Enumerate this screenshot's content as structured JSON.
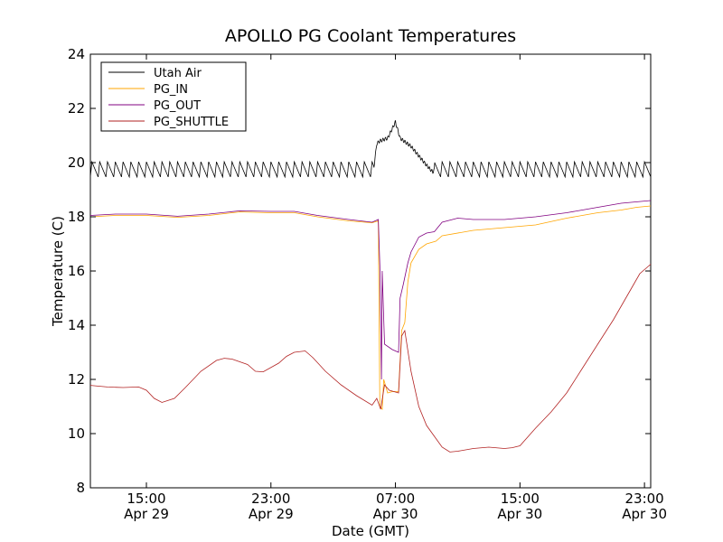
{
  "chart_data": {
    "type": "line",
    "title": "APOLLO PG Coolant Temperatures",
    "xlabel": "Date (GMT)",
    "ylabel": "Temperature (C)",
    "x_unit": "hours",
    "xlim": [
      11.4,
      47.4
    ],
    "ylim": [
      8,
      24
    ],
    "y_ticks": [
      8,
      10,
      12,
      14,
      16,
      18,
      20,
      22,
      24
    ],
    "x_ticks": [
      {
        "value": 15,
        "time": "15:00",
        "date": "Apr 29"
      },
      {
        "value": 23,
        "time": "23:00",
        "date": "Apr 29"
      },
      {
        "value": 31,
        "time": "07:00",
        "date": "Apr 30"
      },
      {
        "value": 39,
        "time": "15:00",
        "date": "Apr 30"
      },
      {
        "value": 47,
        "time": "23:00",
        "date": "Apr 30"
      }
    ],
    "grid": false,
    "legend_position": "top-left",
    "series": [
      {
        "name": "Utah Air",
        "color": "#000000",
        "width": 0.8,
        "oscillation": {
          "amplitude": 0.28,
          "period": 0.5
        },
        "points": [
          [
            11.4,
            19.75
          ],
          [
            29.6,
            19.75
          ],
          [
            29.8,
            20.7
          ],
          [
            30.0,
            20.8
          ],
          [
            30.5,
            20.9
          ],
          [
            31.0,
            21.5
          ],
          [
            31.3,
            20.9
          ],
          [
            32.0,
            20.6
          ],
          [
            33.0,
            19.9
          ],
          [
            33.4,
            19.65
          ],
          [
            33.5,
            19.75
          ],
          [
            47.4,
            19.75
          ]
        ]
      },
      {
        "name": "PG_IN",
        "color": "#FFA500",
        "width": 0.8,
        "points": [
          [
            11.4,
            18.0
          ],
          [
            13.0,
            18.05
          ],
          [
            15.0,
            18.05
          ],
          [
            17.0,
            17.98
          ],
          [
            19.0,
            18.05
          ],
          [
            21.0,
            18.18
          ],
          [
            23.0,
            18.15
          ],
          [
            24.5,
            18.15
          ],
          [
            26.0,
            18.0
          ],
          [
            28.0,
            17.85
          ],
          [
            29.5,
            17.78
          ],
          [
            29.9,
            17.85
          ],
          [
            30.0,
            11.0
          ],
          [
            30.15,
            10.9
          ],
          [
            30.25,
            12.0
          ],
          [
            30.5,
            11.5
          ],
          [
            30.8,
            11.55
          ],
          [
            31.2,
            11.55
          ],
          [
            31.4,
            13.8
          ],
          [
            31.6,
            14.1
          ],
          [
            31.8,
            15.6
          ],
          [
            32.0,
            16.3
          ],
          [
            32.5,
            16.8
          ],
          [
            33.0,
            17.0
          ],
          [
            33.6,
            17.1
          ],
          [
            34.0,
            17.3
          ],
          [
            36.0,
            17.5
          ],
          [
            38.0,
            17.6
          ],
          [
            40.0,
            17.7
          ],
          [
            42.0,
            17.95
          ],
          [
            44.0,
            18.15
          ],
          [
            45.5,
            18.25
          ],
          [
            46.5,
            18.35
          ],
          [
            47.4,
            18.4
          ]
        ]
      },
      {
        "name": "PG_OUT",
        "color": "#800080",
        "width": 0.8,
        "points": [
          [
            11.4,
            18.05
          ],
          [
            13.0,
            18.1
          ],
          [
            15.0,
            18.1
          ],
          [
            17.0,
            18.02
          ],
          [
            19.0,
            18.1
          ],
          [
            21.0,
            18.22
          ],
          [
            23.0,
            18.2
          ],
          [
            24.5,
            18.2
          ],
          [
            26.0,
            18.05
          ],
          [
            28.0,
            17.9
          ],
          [
            29.5,
            17.8
          ],
          [
            29.9,
            17.9
          ],
          [
            30.0,
            16.2
          ],
          [
            30.1,
            12.0
          ],
          [
            30.15,
            16.0
          ],
          [
            30.3,
            13.3
          ],
          [
            30.8,
            13.1
          ],
          [
            31.2,
            13.0
          ],
          [
            31.3,
            15.0
          ],
          [
            31.5,
            15.5
          ],
          [
            31.8,
            16.3
          ],
          [
            32.0,
            16.7
          ],
          [
            32.5,
            17.25
          ],
          [
            33.0,
            17.4
          ],
          [
            33.5,
            17.45
          ],
          [
            34.0,
            17.8
          ],
          [
            35.0,
            17.95
          ],
          [
            36.0,
            17.9
          ],
          [
            38.0,
            17.9
          ],
          [
            40.0,
            18.0
          ],
          [
            42.0,
            18.15
          ],
          [
            44.0,
            18.35
          ],
          [
            45.5,
            18.5
          ],
          [
            47.4,
            18.6
          ]
        ]
      },
      {
        "name": "PG_SHUTTLE",
        "color": "#B22222",
        "width": 0.8,
        "points": [
          [
            11.4,
            11.78
          ],
          [
            12.5,
            11.72
          ],
          [
            13.5,
            11.7
          ],
          [
            14.5,
            11.72
          ],
          [
            15.0,
            11.6
          ],
          [
            15.5,
            11.3
          ],
          [
            16.0,
            11.15
          ],
          [
            16.8,
            11.3
          ],
          [
            17.5,
            11.7
          ],
          [
            18.5,
            12.3
          ],
          [
            19.5,
            12.7
          ],
          [
            20.0,
            12.78
          ],
          [
            20.5,
            12.75
          ],
          [
            21.5,
            12.55
          ],
          [
            22.0,
            12.3
          ],
          [
            22.5,
            12.28
          ],
          [
            23.5,
            12.6
          ],
          [
            24.0,
            12.85
          ],
          [
            24.5,
            13.0
          ],
          [
            25.2,
            13.05
          ],
          [
            25.7,
            12.8
          ],
          [
            26.5,
            12.3
          ],
          [
            27.5,
            11.8
          ],
          [
            28.5,
            11.4
          ],
          [
            29.5,
            11.05
          ],
          [
            29.8,
            11.3
          ],
          [
            30.05,
            10.9
          ],
          [
            30.3,
            11.8
          ],
          [
            30.6,
            11.6
          ],
          [
            31.2,
            11.5
          ],
          [
            31.4,
            13.6
          ],
          [
            31.6,
            13.8
          ],
          [
            32.0,
            12.3
          ],
          [
            32.5,
            11.0
          ],
          [
            33.0,
            10.3
          ],
          [
            33.5,
            9.9
          ],
          [
            34.0,
            9.5
          ],
          [
            34.5,
            9.32
          ],
          [
            35.0,
            9.35
          ],
          [
            36.0,
            9.45
          ],
          [
            37.0,
            9.5
          ],
          [
            38.0,
            9.45
          ],
          [
            38.5,
            9.48
          ],
          [
            39.0,
            9.55
          ],
          [
            40.0,
            10.2
          ],
          [
            41.0,
            10.8
          ],
          [
            42.0,
            11.5
          ],
          [
            43.0,
            12.4
          ],
          [
            44.0,
            13.3
          ],
          [
            45.0,
            14.2
          ],
          [
            46.0,
            15.2
          ],
          [
            46.7,
            15.9
          ],
          [
            47.4,
            16.25
          ]
        ]
      }
    ]
  }
}
